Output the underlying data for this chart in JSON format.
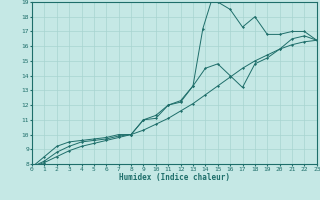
{
  "xlabel": "Humidex (Indice chaleur)",
  "xlim": [
    0,
    23
  ],
  "ylim": [
    8,
    19
  ],
  "xticks": [
    0,
    1,
    2,
    3,
    4,
    5,
    6,
    7,
    8,
    9,
    10,
    11,
    12,
    13,
    14,
    15,
    16,
    17,
    18,
    19,
    20,
    21,
    22,
    23
  ],
  "yticks": [
    8,
    9,
    10,
    11,
    12,
    13,
    14,
    15,
    16,
    17,
    18,
    19
  ],
  "background_color": "#c5e8e5",
  "grid_color": "#a8d4d0",
  "line_color": "#1e6e6a",
  "line1_x": [
    0,
    1,
    2,
    3,
    4,
    5,
    6,
    7,
    8,
    9,
    10,
    11,
    12,
    13,
    13.8,
    14.5,
    15,
    16,
    17,
    18,
    19,
    20,
    21,
    22,
    23
  ],
  "line1_y": [
    7.8,
    8.5,
    9.2,
    9.5,
    9.6,
    9.7,
    9.8,
    10.0,
    10.0,
    11.0,
    11.1,
    12.0,
    12.2,
    13.3,
    17.2,
    19.1,
    19.0,
    18.5,
    17.3,
    18.0,
    16.8,
    16.8,
    17.0,
    17.0,
    16.4
  ],
  "line2_x": [
    0,
    1,
    2,
    3,
    4,
    5,
    6,
    7,
    8,
    9,
    10,
    11,
    12,
    13,
    14,
    15,
    16,
    17,
    18,
    19,
    20,
    21,
    22,
    23
  ],
  "line2_y": [
    7.8,
    8.1,
    8.5,
    8.9,
    9.2,
    9.4,
    9.6,
    9.8,
    10.0,
    10.3,
    10.7,
    11.1,
    11.6,
    12.1,
    12.7,
    13.3,
    13.9,
    14.5,
    15.0,
    15.4,
    15.8,
    16.1,
    16.3,
    16.4
  ],
  "line3_x": [
    0,
    1,
    2,
    3,
    4,
    5,
    6,
    7,
    8,
    9,
    10,
    11,
    12,
    13,
    14,
    15,
    16,
    17,
    18,
    19,
    20,
    21,
    22,
    23
  ],
  "line3_y": [
    7.8,
    8.2,
    8.8,
    9.2,
    9.5,
    9.6,
    9.7,
    9.9,
    10.0,
    11.0,
    11.3,
    12.0,
    12.3,
    13.3,
    14.5,
    14.8,
    14.0,
    13.2,
    14.8,
    15.2,
    15.8,
    16.5,
    16.7,
    16.4
  ]
}
